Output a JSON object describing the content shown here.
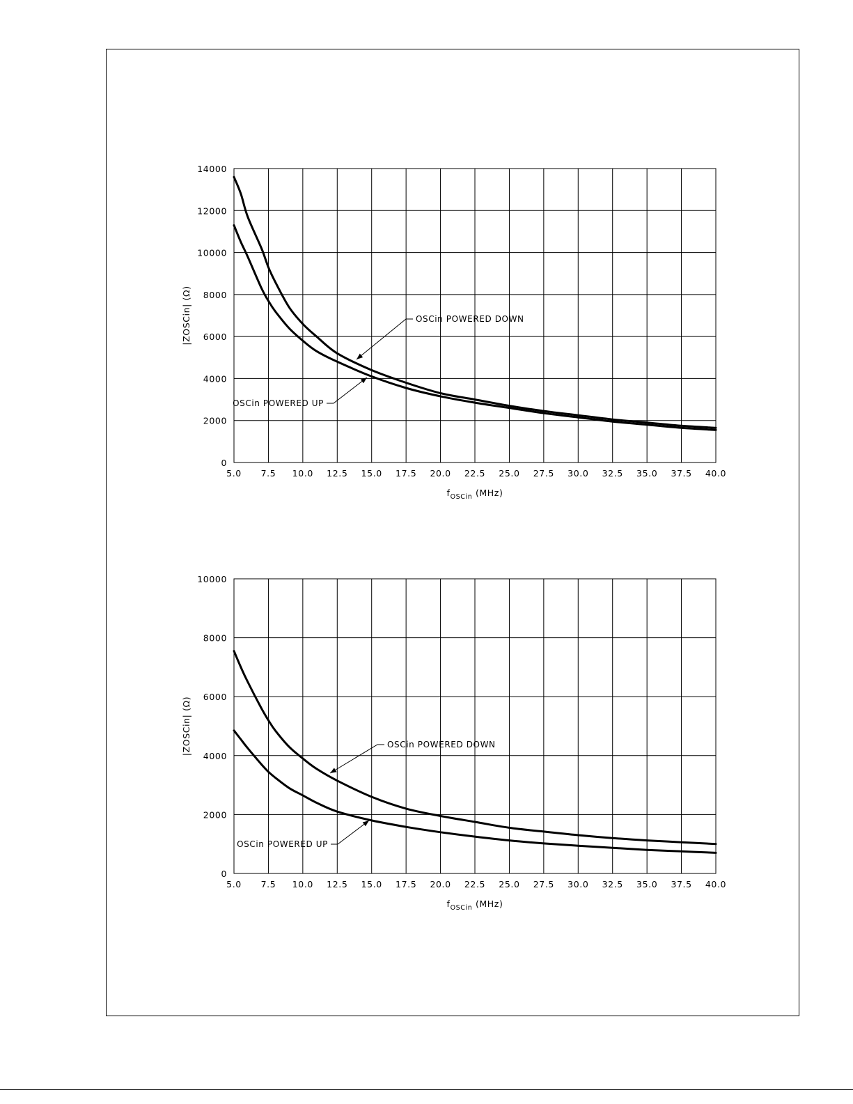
{
  "chart_data": [
    {
      "type": "line",
      "xlabel": {
        "main": "f",
        "sub": "OSCin",
        "unit": " (MHz)"
      },
      "ylabel": "|ZOSCin| (Ω)",
      "xlim": [
        5.0,
        40.0
      ],
      "ylim": [
        0,
        14000
      ],
      "xticks": [
        "5.0",
        "7.5",
        "10.0",
        "12.5",
        "15.0",
        "17.5",
        "20.0",
        "22.5",
        "25.0",
        "27.5",
        "30.0",
        "32.5",
        "35.0",
        "37.5",
        "40.0"
      ],
      "yticks": [
        "0",
        "2000",
        "4000",
        "6000",
        "8000",
        "10000",
        "12000",
        "14000"
      ],
      "grid": true,
      "x": [
        5.0,
        5.5,
        6.0,
        7.0,
        7.5,
        8.0,
        9.0,
        10.0,
        11.0,
        12.5,
        15.0,
        17.5,
        20.0,
        22.5,
        25.0,
        27.5,
        30.0,
        32.5,
        35.0,
        37.5,
        40.0
      ],
      "series": [
        {
          "name": "OSCin POWERED DOWN",
          "values": [
            13600,
            12800,
            11700,
            10200,
            9300,
            8600,
            7400,
            6600,
            6000,
            5200,
            4400,
            3800,
            3300,
            3000,
            2700,
            2450,
            2250,
            2050,
            1900,
            1750,
            1650
          ]
        },
        {
          "name": "OSCin POWERED UP",
          "values": [
            11300,
            10500,
            9800,
            8300,
            7700,
            7200,
            6400,
            5800,
            5300,
            4800,
            4100,
            3550,
            3150,
            2850,
            2600,
            2350,
            2150,
            1950,
            1800,
            1650,
            1550
          ]
        }
      ],
      "annotations": [
        {
          "text": "OSCin POWERED DOWN",
          "series": "OSCin POWERED DOWN",
          "x": 14.0,
          "y": 4600
        },
        {
          "text": "OSCin POWERED UP",
          "series": "OSCin POWERED UP",
          "x": 14.7,
          "y": 4050
        }
      ]
    },
    {
      "type": "line",
      "xlabel": {
        "main": "f",
        "sub": "OSCin",
        "unit": " (MHz)"
      },
      "ylabel": "|ZOSCin| (Ω)",
      "xlim": [
        5.0,
        40.0
      ],
      "ylim": [
        0,
        10000
      ],
      "xticks": [
        "5.0",
        "7.5",
        "10.0",
        "12.5",
        "15.0",
        "17.5",
        "20.0",
        "22.5",
        "25.0",
        "27.5",
        "30.0",
        "32.5",
        "35.0",
        "37.5",
        "40.0"
      ],
      "yticks": [
        "0",
        "2000",
        "4000",
        "6000",
        "8000",
        "10000"
      ],
      "grid": true,
      "x": [
        5.0,
        5.5,
        6.0,
        7.0,
        7.5,
        8.0,
        9.0,
        10.0,
        11.0,
        12.5,
        15.0,
        17.5,
        20.0,
        22.5,
        25.0,
        27.5,
        30.0,
        32.5,
        35.0,
        37.5,
        40.0
      ],
      "series": [
        {
          "name": "OSCin POWERED DOWN",
          "values": [
            7550,
            7000,
            6500,
            5600,
            5200,
            4850,
            4300,
            3900,
            3550,
            3150,
            2600,
            2200,
            1950,
            1750,
            1550,
            1420,
            1300,
            1200,
            1120,
            1060,
            1000
          ]
        },
        {
          "name": "OSCin POWERED UP",
          "values": [
            4850,
            4550,
            4250,
            3700,
            3450,
            3250,
            2900,
            2650,
            2400,
            2100,
            1800,
            1580,
            1400,
            1250,
            1120,
            1020,
            940,
            870,
            800,
            750,
            700
          ]
        }
      ],
      "annotations": [
        {
          "text": "OSCin POWERED DOWN",
          "series": "OSCin POWERED DOWN",
          "x": 12.0,
          "y": 3300
        },
        {
          "text": "OSCin POWERED UP",
          "series": "OSCin POWERED UP",
          "x": 14.7,
          "y": 1850
        }
      ]
    }
  ]
}
